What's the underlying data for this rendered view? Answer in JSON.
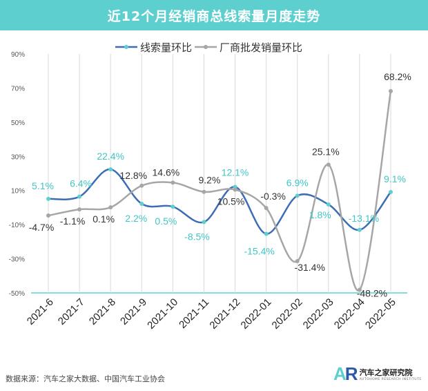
{
  "title": "近12个月经销商总线索量月度走势",
  "source_note": "数据来源：汽车之家大数据、中国汽车工业协会",
  "brand": {
    "logo_a": "A",
    "logo_r": "R",
    "name_cn": "汽车之家研究院",
    "name_en": "AUTOHOME RESEARCH INSTITUTE"
  },
  "colors": {
    "series1": "#3c6db4",
    "series1_marker": "#5ecfcf",
    "series1_label": "#3fc6c6",
    "series2": "#a6a6a6",
    "series2_label": "#333333",
    "axis": "#5ecfcf",
    "grid": "#d9d9d9"
  },
  "chart_data": {
    "type": "line",
    "title": "近12个月经销商总线索量月度走势",
    "categories": [
      "2021-6",
      "2021-7",
      "2021-8",
      "2021-9",
      "2021-10",
      "2021-11",
      "2021-12",
      "2022-01",
      "2022-02",
      "2022-03",
      "2022-04",
      "2022-05"
    ],
    "ylim": [
      -50,
      90
    ],
    "yticks": [
      "90%",
      "70%",
      "50%",
      "30%",
      "10%",
      "-10%",
      "-30%",
      "-50%"
    ],
    "ytick_values": [
      90,
      70,
      50,
      30,
      10,
      -10,
      -30,
      -50
    ],
    "legend": "top",
    "series": [
      {
        "name": "线索量环比",
        "values": [
          5.1,
          6.4,
          22.4,
          2.2,
          0.5,
          -8.5,
          12.1,
          -15.4,
          6.9,
          1.8,
          -13.1,
          9.1
        ],
        "labels": [
          "5.1%",
          "6.4%",
          "22.4%",
          "2.2%",
          "0.5%",
          "-8.5%",
          "12.1%",
          "-15.4%",
          "6.9%",
          "1.8%",
          "-13.1%",
          "9.1%"
        ]
      },
      {
        "name": "厂商批发销量环比",
        "values": [
          -4.7,
          -1.1,
          0.1,
          12.8,
          14.6,
          9.2,
          10.5,
          -0.3,
          -31.4,
          25.1,
          -48.2,
          68.2
        ],
        "labels": [
          "-4.7%",
          "-1.1%",
          "0.1%",
          "12.8%",
          "14.6%",
          "9.2%",
          "10.5%",
          "-0.3%",
          "-31.4%",
          "25.1%",
          "-48.2%",
          "68.2%"
        ]
      }
    ]
  }
}
